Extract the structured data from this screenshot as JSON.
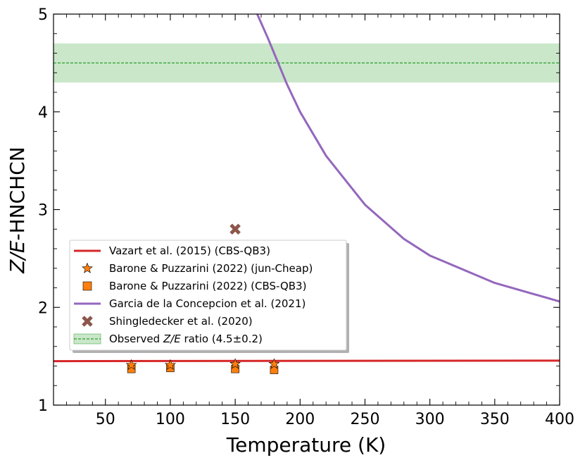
{
  "chart_data": {
    "type": "line",
    "xlabel": "Temperature (K)",
    "ylabel_italic": "Z/E",
    "ylabel_rest": "-HNCHCN",
    "xlim": [
      10,
      400
    ],
    "ylim": [
      1,
      5
    ],
    "x_ticks": [
      50,
      100,
      150,
      200,
      250,
      300,
      350,
      400
    ],
    "y_ticks": [
      1,
      2,
      3,
      4,
      5
    ],
    "observed": {
      "value": 4.5,
      "band": [
        4.3,
        4.7
      ],
      "color": "#2ca02c",
      "label_pre": "Observed ",
      "label_italic": "Z/E",
      "label_post": " ratio (4.5±0.2)"
    },
    "vazart": {
      "label": "Vazart et al. (2015) (CBS-QB3)",
      "color": "#d62728",
      "x": [
        10,
        400
      ],
      "y": [
        1.45,
        1.455
      ]
    },
    "barone_jun": {
      "label": "Barone & Puzzarini (2022) (jun-Cheap)",
      "color": "#ff7f0e",
      "x": [
        70,
        100,
        150,
        180
      ],
      "y": [
        1.41,
        1.41,
        1.42,
        1.42
      ]
    },
    "barone_cbs": {
      "label": "Barone & Puzzarini (2022) (CBS-QB3)",
      "color": "#ff7f0e",
      "x": [
        70,
        100,
        150,
        180
      ],
      "y": [
        1.37,
        1.38,
        1.37,
        1.36
      ]
    },
    "garcia": {
      "label": "Garcia de la Concepcion et al. (2021)",
      "color": "#9467bd",
      "x": [
        167,
        175,
        180,
        190,
        200,
        220,
        250,
        280,
        300,
        350,
        400
      ],
      "y": [
        5.0,
        4.76,
        4.6,
        4.28,
        4.0,
        3.55,
        3.05,
        2.7,
        2.53,
        2.25,
        2.06
      ]
    },
    "shingledecker": {
      "label": "Shingledecker et al. (2020)",
      "color": "#8c564b",
      "x": [
        150
      ],
      "y": [
        2.8
      ]
    },
    "legend_position": "center-left"
  }
}
